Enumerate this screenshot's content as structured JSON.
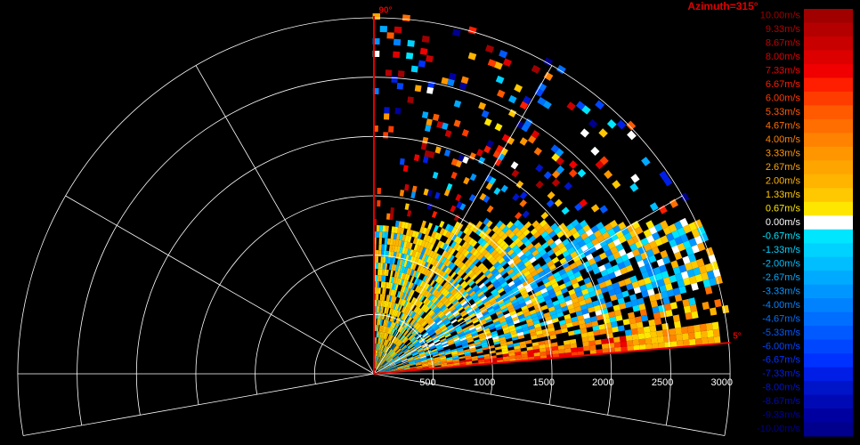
{
  "title": "Azimuth=315°",
  "elevation_labels": {
    "top": "90°",
    "bottom": "5°"
  },
  "range_labels": [
    "500",
    "1000",
    "1500",
    "2000",
    "2500",
    "3000"
  ],
  "colorbar": [
    {
      "label": "10.00m/s",
      "color": "#a00000"
    },
    {
      "label": "9.33m/s",
      "color": "#b40000"
    },
    {
      "label": "8.67m/s",
      "color": "#c80000"
    },
    {
      "label": "8.00m/s",
      "color": "#dc0000"
    },
    {
      "label": "7.33m/s",
      "color": "#f00000"
    },
    {
      "label": "6.67m/s",
      "color": "#ff1e00"
    },
    {
      "label": "6.00m/s",
      "color": "#ff3c00"
    },
    {
      "label": "5.33m/s",
      "color": "#ff5a00"
    },
    {
      "label": "4.67m/s",
      "color": "#ff6e00"
    },
    {
      "label": "4.00m/s",
      "color": "#ff8200"
    },
    {
      "label": "3.33m/s",
      "color": "#ff9600"
    },
    {
      "label": "2.67m/s",
      "color": "#ffa500"
    },
    {
      "label": "2.00m/s",
      "color": "#ffb400"
    },
    {
      "label": "1.33m/s",
      "color": "#ffc800"
    },
    {
      "label": "0.67m/s",
      "color": "#ffe600"
    },
    {
      "label": "0.00m/s",
      "color": "#ffffff"
    },
    {
      "label": "-0.67m/s",
      "color": "#00e6ff"
    },
    {
      "label": "-1.33m/s",
      "color": "#00d2ff"
    },
    {
      "label": "-2.00m/s",
      "color": "#00beff"
    },
    {
      "label": "-2.67m/s",
      "color": "#00aaff"
    },
    {
      "label": "-3.33m/s",
      "color": "#0096ff"
    },
    {
      "label": "-4.00m/s",
      "color": "#0082ff"
    },
    {
      "label": "-4.67m/s",
      "color": "#006eff"
    },
    {
      "label": "-5.33m/s",
      "color": "#005aff"
    },
    {
      "label": "-6.00m/s",
      "color": "#0046ff"
    },
    {
      "label": "-6.67m/s",
      "color": "#0032ff"
    },
    {
      "label": "-7.33m/s",
      "color": "#001ee6"
    },
    {
      "label": "-8.00m/s",
      "color": "#0014c8"
    },
    {
      "label": "-8.67m/s",
      "color": "#000ab4"
    },
    {
      "label": "-9.33m/s",
      "color": "#0000a0"
    },
    {
      "label": "-10.00m/s",
      "color": "#00008c"
    }
  ]
}
